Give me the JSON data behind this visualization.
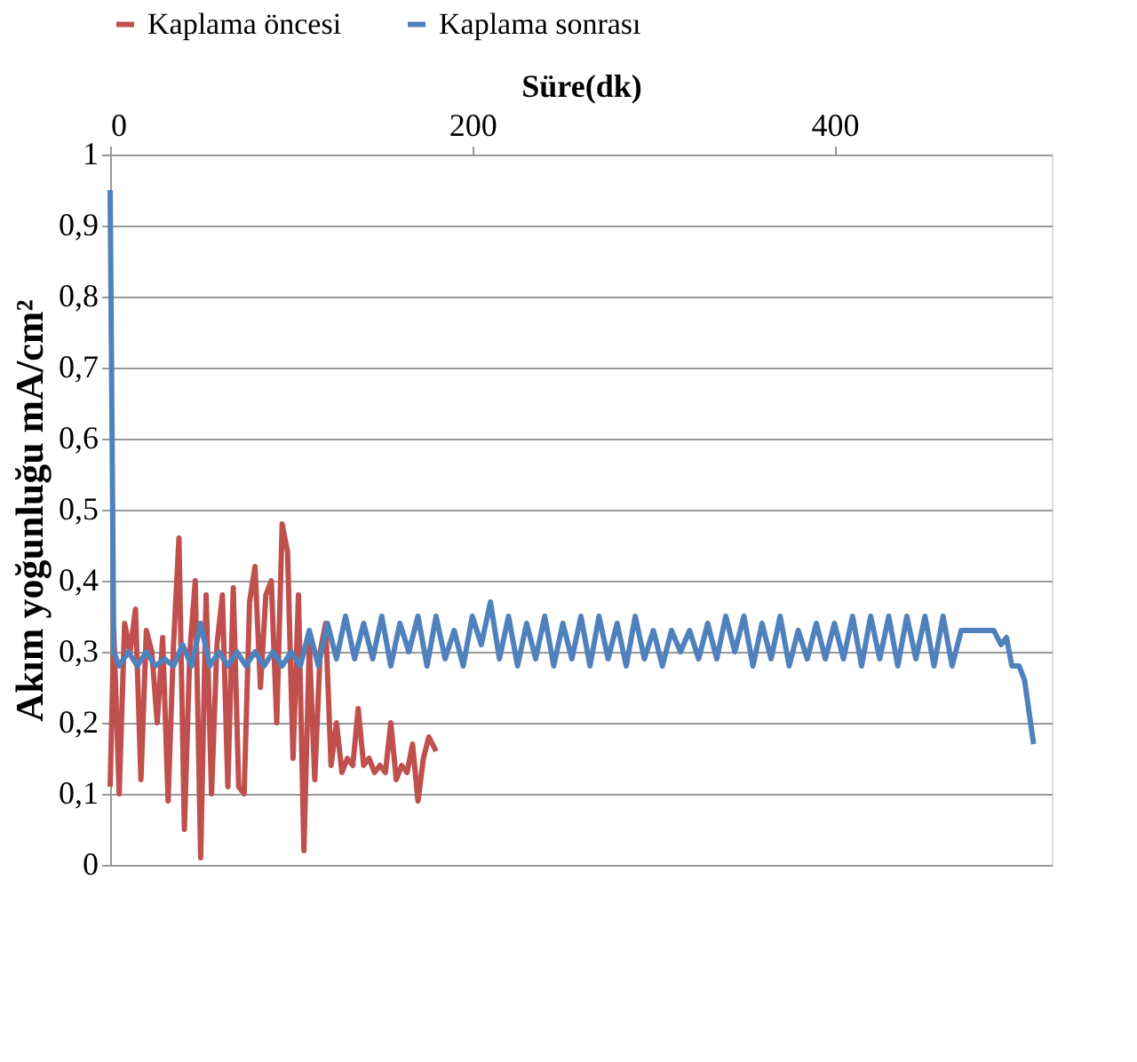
{
  "chart_data": {
    "type": "line",
    "xlabel": "Süre(dk)",
    "ylabel": "Akım yoğunluğu mA/cm²",
    "xlim": [
      0,
      520
    ],
    "xticks": [
      0,
      200,
      400
    ],
    "ylim": [
      0,
      1
    ],
    "yticks": [
      0,
      {
        "value": 0.1,
        "label": "0,1"
      },
      {
        "value": 0.2,
        "label": "0,2"
      },
      {
        "value": 0.3,
        "label": "0,3"
      },
      {
        "value": 0.4,
        "label": "0,4"
      },
      {
        "value": 0.5,
        "label": "0,5"
      },
      {
        "value": 0.6,
        "label": "0,6"
      },
      {
        "value": 0.7,
        "label": "0,7"
      },
      {
        "value": 0.8,
        "label": "0,8"
      },
      {
        "value": 0.9,
        "label": "0,9"
      },
      1
    ],
    "grid": "y",
    "legend": "top",
    "marker": "none",
    "line_style": "solid",
    "series": [
      {
        "name": "Kaplama öncesi",
        "color": "#c0504d",
        "x": [
          0,
          2,
          5,
          8,
          11,
          14,
          17,
          20,
          23,
          26,
          29,
          32,
          35,
          38,
          41,
          44,
          47,
          50,
          53,
          56,
          59,
          62,
          65,
          68,
          71,
          74,
          77,
          80,
          83,
          86,
          89,
          92,
          95,
          98,
          101,
          104,
          107,
          110,
          113,
          116,
          119,
          122,
          125,
          128,
          131,
          134,
          137,
          140,
          143,
          146,
          149,
          152,
          155,
          158,
          161,
          164,
          167,
          170,
          173,
          176,
          180
        ],
        "values": [
          0.11,
          0.33,
          0.1,
          0.34,
          0.3,
          0.36,
          0.12,
          0.33,
          0.3,
          0.2,
          0.32,
          0.09,
          0.31,
          0.46,
          0.05,
          0.3,
          0.4,
          0.01,
          0.38,
          0.1,
          0.31,
          0.38,
          0.11,
          0.39,
          0.11,
          0.1,
          0.37,
          0.42,
          0.25,
          0.38,
          0.4,
          0.2,
          0.48,
          0.44,
          0.15,
          0.38,
          0.02,
          0.31,
          0.12,
          0.3,
          0.34,
          0.14,
          0.2,
          0.13,
          0.15,
          0.14,
          0.22,
          0.14,
          0.15,
          0.13,
          0.14,
          0.13,
          0.2,
          0.12,
          0.14,
          0.13,
          0.17,
          0.09,
          0.15,
          0.18,
          0.16
        ]
      },
      {
        "name": "Kaplama sonrası",
        "color": "#4f81bd",
        "x": [
          0,
          2,
          5,
          10,
          15,
          20,
          25,
          30,
          35,
          40,
          45,
          50,
          55,
          60,
          65,
          70,
          75,
          80,
          85,
          90,
          95,
          100,
          105,
          110,
          115,
          120,
          125,
          130,
          135,
          140,
          145,
          150,
          155,
          160,
          165,
          170,
          175,
          180,
          185,
          190,
          195,
          200,
          205,
          210,
          215,
          220,
          225,
          230,
          235,
          240,
          245,
          250,
          255,
          260,
          265,
          270,
          275,
          280,
          285,
          290,
          295,
          300,
          305,
          310,
          315,
          320,
          325,
          330,
          335,
          340,
          345,
          350,
          355,
          360,
          365,
          370,
          375,
          380,
          385,
          390,
          395,
          400,
          405,
          410,
          415,
          420,
          425,
          430,
          435,
          440,
          445,
          450,
          455,
          460,
          465,
          470,
          480,
          488,
          492,
          495,
          498,
          502,
          505,
          510
        ],
        "values": [
          0.95,
          0.3,
          0.28,
          0.3,
          0.28,
          0.3,
          0.28,
          0.29,
          0.28,
          0.31,
          0.28,
          0.34,
          0.28,
          0.3,
          0.28,
          0.3,
          0.28,
          0.3,
          0.28,
          0.3,
          0.28,
          0.3,
          0.28,
          0.33,
          0.28,
          0.34,
          0.29,
          0.35,
          0.29,
          0.34,
          0.29,
          0.35,
          0.28,
          0.34,
          0.3,
          0.35,
          0.28,
          0.35,
          0.29,
          0.33,
          0.28,
          0.35,
          0.31,
          0.37,
          0.29,
          0.35,
          0.28,
          0.34,
          0.29,
          0.35,
          0.28,
          0.34,
          0.29,
          0.35,
          0.28,
          0.35,
          0.29,
          0.34,
          0.28,
          0.35,
          0.29,
          0.33,
          0.28,
          0.33,
          0.3,
          0.33,
          0.29,
          0.34,
          0.29,
          0.35,
          0.3,
          0.35,
          0.28,
          0.34,
          0.29,
          0.35,
          0.28,
          0.33,
          0.29,
          0.34,
          0.29,
          0.34,
          0.29,
          0.35,
          0.28,
          0.35,
          0.29,
          0.35,
          0.28,
          0.35,
          0.29,
          0.35,
          0.28,
          0.35,
          0.28,
          0.33,
          0.33,
          0.33,
          0.31,
          0.32,
          0.28,
          0.28,
          0.26,
          0.17
        ]
      }
    ]
  }
}
